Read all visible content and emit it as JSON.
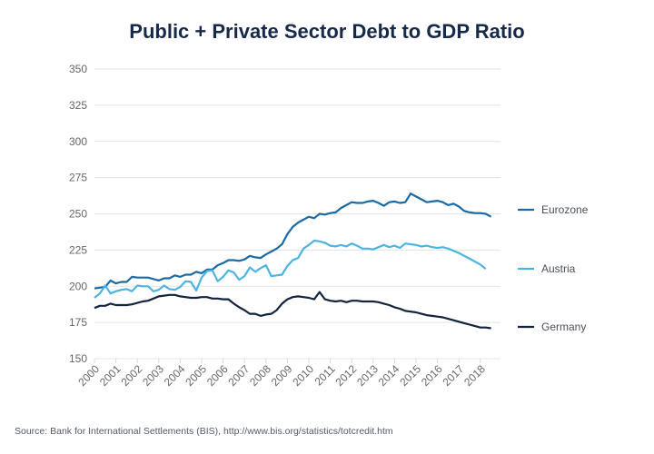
{
  "title": "Public + Private Sector Debt to GDP Ratio",
  "source": "Source: Bank for International Settlements (BIS), http://www.bis.org/statistics/totcredit.htm",
  "chart_data": {
    "type": "line",
    "title": "Public + Private Sector Debt to GDP Ratio",
    "xlabel": "",
    "ylabel": "",
    "ylim": [
      150,
      350
    ],
    "yticks": [
      150,
      175,
      200,
      225,
      250,
      275,
      300,
      325,
      350
    ],
    "xlim": [
      2000,
      2018.75
    ],
    "xticks": [
      "2000",
      "2001",
      "2002",
      "2003",
      "2004",
      "2005",
      "2006",
      "2007",
      "2008",
      "2009",
      "2010",
      "2011",
      "2012",
      "2013",
      "2014",
      "2015",
      "2016",
      "2017",
      "2018"
    ],
    "grid": true,
    "legend_position": "right",
    "x_frequency": "quarterly",
    "x_start": 2000,
    "series": [
      {
        "name": "Eurozone",
        "color": "#1a6aa6",
        "values": [
          198.5,
          199,
          199.5,
          204,
          202,
          203,
          203,
          206.5,
          206,
          206,
          206,
          205,
          204,
          205.5,
          205.5,
          207.5,
          206.5,
          208,
          208,
          210,
          209,
          211.5,
          211.5,
          214.5,
          216,
          218,
          218,
          217.5,
          218.5,
          221,
          220,
          219.5,
          222,
          224,
          226,
          229,
          236,
          241,
          244,
          246,
          248,
          247,
          250,
          249.5,
          250.5,
          251,
          254,
          256,
          258,
          257.5,
          257.5,
          258.5,
          259,
          257.5,
          255.5,
          258,
          258.5,
          257.5,
          258,
          264,
          262,
          260,
          258,
          258.5,
          259,
          258,
          256,
          257,
          255,
          252,
          251,
          250.5,
          250.5,
          250,
          248
        ]
      },
      {
        "name": "Austria",
        "color": "#4db3e2",
        "values": [
          192,
          195,
          200.5,
          195,
          196.5,
          197.5,
          198,
          196.5,
          200.5,
          200,
          200,
          196.5,
          197.5,
          200.5,
          198,
          197.5,
          199.5,
          203.5,
          203,
          197,
          206,
          210.5,
          211,
          203.5,
          206.5,
          211,
          209.5,
          204.5,
          207,
          213,
          210,
          212.5,
          214.5,
          207,
          207.5,
          208,
          214,
          218,
          219.5,
          226,
          228.5,
          231.5,
          231,
          230,
          228,
          227.5,
          228.5,
          227.5,
          229.5,
          228,
          226,
          226,
          225.5,
          227,
          228.5,
          227,
          228,
          226.5,
          229.5,
          229,
          228.5,
          227.5,
          228,
          227,
          226.5,
          227,
          226,
          224.5,
          223,
          221,
          219,
          217,
          215,
          212
        ]
      },
      {
        "name": "Germany",
        "color": "#12233e",
        "values": [
          185,
          186.5,
          186.5,
          188,
          187,
          187,
          187,
          187.5,
          188.5,
          189.5,
          190,
          191.5,
          193,
          193.5,
          194,
          194,
          193,
          192.5,
          192,
          192,
          192.5,
          192.5,
          191.5,
          191.5,
          191,
          191,
          188,
          185.5,
          183.5,
          181,
          181,
          179.5,
          180.5,
          181,
          183.5,
          188,
          191,
          192.5,
          193,
          192.5,
          192,
          191,
          196,
          191,
          190,
          189.5,
          190,
          189,
          190,
          190,
          189.5,
          189.5,
          189.5,
          189,
          188,
          187,
          185.5,
          184.5,
          183,
          182.5,
          182,
          181,
          180,
          179.5,
          179,
          178.5,
          177.5,
          176.5,
          175.5,
          174.5,
          173.5,
          172.5,
          171.5,
          171.5,
          171
        ]
      }
    ]
  }
}
